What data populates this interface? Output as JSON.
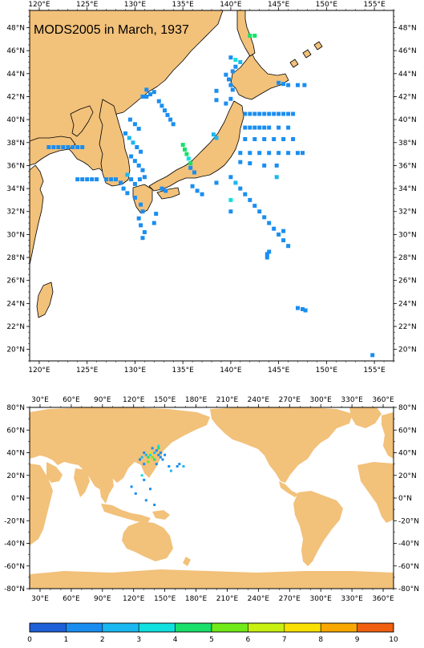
{
  "title": "MODS2005 in March, 1937",
  "colors": {
    "land": "#f2c17a",
    "land_stroke": "#000000",
    "ocean": "#ffffff",
    "frame": "#000000"
  },
  "regional_map": {
    "lon_range": [
      119,
      157
    ],
    "lat_range": [
      19,
      49.5
    ],
    "lon_ticks": [
      120,
      125,
      130,
      135,
      140,
      145,
      150,
      155
    ],
    "lon_labels": [
      "120°E",
      "125°E",
      "130°E",
      "135°E",
      "140°E",
      "145°E",
      "150°E",
      "155°E"
    ],
    "lat_ticks": [
      20,
      22,
      24,
      26,
      28,
      30,
      32,
      34,
      36,
      38,
      40,
      42,
      44,
      46,
      48
    ],
    "lat_labels": [
      "20°N",
      "22°N",
      "24°N",
      "26°N",
      "28°N",
      "30°N",
      "32°N",
      "34°N",
      "36°N",
      "38°N",
      "40°N",
      "42°N",
      "44°N",
      "46°N",
      "48°N"
    ]
  },
  "global_map": {
    "lon_range": [
      20,
      370
    ],
    "lat_range": [
      -80,
      80
    ],
    "lon_ticks": [
      30,
      60,
      90,
      120,
      150,
      180,
      210,
      240,
      270,
      300,
      330,
      360
    ],
    "lon_labels": [
      "30°E",
      "60°E",
      "90°E",
      "120°E",
      "150°E",
      "180°E",
      "210°E",
      "240°E",
      "270°E",
      "300°E",
      "330°E",
      "360°E"
    ],
    "lat_ticks": [
      -80,
      -60,
      -40,
      -20,
      0,
      20,
      40,
      60,
      80
    ],
    "lat_labels": [
      "-80°N",
      "-60°N",
      "-40°N",
      "-20°N",
      "0°N",
      "20°N",
      "40°N",
      "60°N",
      "80°N"
    ]
  },
  "colorbar": {
    "ticks": [
      "0",
      "1",
      "2",
      "3",
      "4",
      "5",
      "6",
      "7",
      "8",
      "9",
      "10"
    ],
    "colors": [
      "#1e60d8",
      "#1a8ef0",
      "#1ab8f0",
      "#10e0e0",
      "#18e06a",
      "#70ea18",
      "#c8f010",
      "#fae000",
      "#f8a800",
      "#f06010"
    ]
  },
  "chart_data": {
    "type": "heatmap",
    "description_units": "count of observations per 0.5-degree cell",
    "points": [
      {
        "lon": 142.0,
        "lat": 47.3,
        "v": 4
      },
      {
        "lon": 142.5,
        "lat": 47.3,
        "v": 4
      },
      {
        "lon": 140.0,
        "lat": 45.4,
        "v": 1
      },
      {
        "lon": 140.5,
        "lat": 45.2,
        "v": 3
      },
      {
        "lon": 141.0,
        "lat": 45.0,
        "v": 2
      },
      {
        "lon": 140.5,
        "lat": 44.6,
        "v": 1
      },
      {
        "lon": 140.2,
        "lat": 44.2,
        "v": 1
      },
      {
        "lon": 139.5,
        "lat": 43.9,
        "v": 1
      },
      {
        "lon": 139.8,
        "lat": 43.5,
        "v": 1
      },
      {
        "lon": 140.0,
        "lat": 43.0,
        "v": 1
      },
      {
        "lon": 140.2,
        "lat": 42.6,
        "v": 1
      },
      {
        "lon": 138.5,
        "lat": 42.5,
        "v": 1
      },
      {
        "lon": 138.5,
        "lat": 41.7,
        "v": 1
      },
      {
        "lon": 145.0,
        "lat": 43.2,
        "v": 1
      },
      {
        "lon": 145.5,
        "lat": 43.1,
        "v": 1
      },
      {
        "lon": 146.0,
        "lat": 43.0,
        "v": 1
      },
      {
        "lon": 147.0,
        "lat": 43.0,
        "v": 1
      },
      {
        "lon": 147.7,
        "lat": 43.0,
        "v": 1
      },
      {
        "lon": 141.5,
        "lat": 40.5,
        "v": 1
      },
      {
        "lon": 142.0,
        "lat": 40.5,
        "v": 1
      },
      {
        "lon": 142.5,
        "lat": 40.5,
        "v": 1
      },
      {
        "lon": 143.0,
        "lat": 40.5,
        "v": 1
      },
      {
        "lon": 143.5,
        "lat": 40.5,
        "v": 1
      },
      {
        "lon": 144.0,
        "lat": 40.5,
        "v": 1
      },
      {
        "lon": 144.5,
        "lat": 40.5,
        "v": 1
      },
      {
        "lon": 145.0,
        "lat": 40.5,
        "v": 1
      },
      {
        "lon": 145.5,
        "lat": 40.5,
        "v": 1
      },
      {
        "lon": 146.0,
        "lat": 40.5,
        "v": 1
      },
      {
        "lon": 146.5,
        "lat": 40.5,
        "v": 1
      },
      {
        "lon": 141.5,
        "lat": 39.3,
        "v": 1
      },
      {
        "lon": 142.0,
        "lat": 39.3,
        "v": 1
      },
      {
        "lon": 142.5,
        "lat": 39.3,
        "v": 1
      },
      {
        "lon": 143.0,
        "lat": 39.3,
        "v": 1
      },
      {
        "lon": 143.5,
        "lat": 39.3,
        "v": 1
      },
      {
        "lon": 144.0,
        "lat": 39.3,
        "v": 1
      },
      {
        "lon": 145.0,
        "lat": 39.3,
        "v": 1
      },
      {
        "lon": 146.0,
        "lat": 39.3,
        "v": 1
      },
      {
        "lon": 141.5,
        "lat": 38.3,
        "v": 1
      },
      {
        "lon": 142.5,
        "lat": 38.3,
        "v": 1
      },
      {
        "lon": 143.5,
        "lat": 38.3,
        "v": 1
      },
      {
        "lon": 144.5,
        "lat": 38.3,
        "v": 1
      },
      {
        "lon": 145.5,
        "lat": 38.3,
        "v": 1
      },
      {
        "lon": 146.5,
        "lat": 38.3,
        "v": 1
      },
      {
        "lon": 141.0,
        "lat": 37.1,
        "v": 1
      },
      {
        "lon": 142.0,
        "lat": 37.1,
        "v": 1
      },
      {
        "lon": 143.0,
        "lat": 37.1,
        "v": 1
      },
      {
        "lon": 144.0,
        "lat": 37.1,
        "v": 1
      },
      {
        "lon": 145.0,
        "lat": 37.1,
        "v": 1
      },
      {
        "lon": 146.0,
        "lat": 37.1,
        "v": 1
      },
      {
        "lon": 147.0,
        "lat": 37.1,
        "v": 1
      },
      {
        "lon": 147.5,
        "lat": 37.1,
        "v": 1
      },
      {
        "lon": 141.0,
        "lat": 36.3,
        "v": 1
      },
      {
        "lon": 142.0,
        "lat": 36.2,
        "v": 1
      },
      {
        "lon": 143.5,
        "lat": 36.0,
        "v": 1
      },
      {
        "lon": 144.8,
        "lat": 36.0,
        "v": 1
      },
      {
        "lon": 144.8,
        "lat": 35.0,
        "v": 2
      },
      {
        "lon": 140.0,
        "lat": 35.0,
        "v": 1
      },
      {
        "lon": 140.5,
        "lat": 34.5,
        "v": 2
      },
      {
        "lon": 141.0,
        "lat": 34.0,
        "v": 1
      },
      {
        "lon": 141.5,
        "lat": 33.5,
        "v": 1
      },
      {
        "lon": 142.0,
        "lat": 33.0,
        "v": 1
      },
      {
        "lon": 142.5,
        "lat": 32.5,
        "v": 1
      },
      {
        "lon": 143.0,
        "lat": 32.0,
        "v": 1
      },
      {
        "lon": 143.5,
        "lat": 31.5,
        "v": 1
      },
      {
        "lon": 144.0,
        "lat": 31.0,
        "v": 1
      },
      {
        "lon": 144.5,
        "lat": 30.5,
        "v": 1
      },
      {
        "lon": 145.0,
        "lat": 30.0,
        "v": 1
      },
      {
        "lon": 145.5,
        "lat": 29.5,
        "v": 1
      },
      {
        "lon": 146.0,
        "lat": 29.0,
        "v": 1
      },
      {
        "lon": 145.5,
        "lat": 30.3,
        "v": 1
      },
      {
        "lon": 140.0,
        "lat": 33.0,
        "v": 3
      },
      {
        "lon": 140.0,
        "lat": 32.0,
        "v": 1
      },
      {
        "lon": 143.8,
        "lat": 28.0,
        "v": 1
      },
      {
        "lon": 143.8,
        "lat": 28.3,
        "v": 1
      },
      {
        "lon": 144.0,
        "lat": 28.5,
        "v": 1
      },
      {
        "lon": 147.0,
        "lat": 23.6,
        "v": 1
      },
      {
        "lon": 147.5,
        "lat": 23.5,
        "v": 1
      },
      {
        "lon": 147.8,
        "lat": 23.4,
        "v": 1
      },
      {
        "lon": 154.8,
        "lat": 19.5,
        "v": 1
      },
      {
        "lon": 135.0,
        "lat": 37.8,
        "v": 4
      },
      {
        "lon": 135.2,
        "lat": 37.4,
        "v": 4
      },
      {
        "lon": 135.4,
        "lat": 37.0,
        "v": 4
      },
      {
        "lon": 135.6,
        "lat": 36.6,
        "v": 3
      },
      {
        "lon": 135.8,
        "lat": 36.2,
        "v": 4
      },
      {
        "lon": 138.2,
        "lat": 38.7,
        "v": 2
      },
      {
        "lon": 138.5,
        "lat": 38.4,
        "v": 2
      },
      {
        "lon": 135.8,
        "lat": 35.8,
        "v": 1
      },
      {
        "lon": 136.2,
        "lat": 35.4,
        "v": 1
      },
      {
        "lon": 132.5,
        "lat": 41.6,
        "v": 1
      },
      {
        "lon": 132.8,
        "lat": 41.2,
        "v": 1
      },
      {
        "lon": 133.1,
        "lat": 40.8,
        "v": 1
      },
      {
        "lon": 133.4,
        "lat": 40.4,
        "v": 1
      },
      {
        "lon": 133.7,
        "lat": 40.0,
        "v": 1
      },
      {
        "lon": 134.0,
        "lat": 39.6,
        "v": 1
      },
      {
        "lon": 130.8,
        "lat": 42.0,
        "v": 1
      },
      {
        "lon": 131.2,
        "lat": 42.0,
        "v": 1
      },
      {
        "lon": 131.6,
        "lat": 42.2,
        "v": 1
      },
      {
        "lon": 132.0,
        "lat": 42.4,
        "v": 1
      },
      {
        "lon": 131.2,
        "lat": 42.6,
        "v": 1
      },
      {
        "lon": 129.5,
        "lat": 40.0,
        "v": 1
      },
      {
        "lon": 130.0,
        "lat": 39.6,
        "v": 1
      },
      {
        "lon": 130.4,
        "lat": 39.2,
        "v": 1
      },
      {
        "lon": 129.0,
        "lat": 38.8,
        "v": 1
      },
      {
        "lon": 129.4,
        "lat": 38.4,
        "v": 2
      },
      {
        "lon": 129.8,
        "lat": 38.0,
        "v": 2
      },
      {
        "lon": 130.2,
        "lat": 37.6,
        "v": 1
      },
      {
        "lon": 130.6,
        "lat": 37.2,
        "v": 1
      },
      {
        "lon": 129.6,
        "lat": 36.8,
        "v": 1
      },
      {
        "lon": 130.0,
        "lat": 36.4,
        "v": 1
      },
      {
        "lon": 130.4,
        "lat": 36.0,
        "v": 1
      },
      {
        "lon": 130.8,
        "lat": 35.6,
        "v": 1
      },
      {
        "lon": 129.2,
        "lat": 35.2,
        "v": 2
      },
      {
        "lon": 129.6,
        "lat": 34.8,
        "v": 1
      },
      {
        "lon": 130.0,
        "lat": 34.4,
        "v": 1
      },
      {
        "lon": 130.5,
        "lat": 34.8,
        "v": 1
      },
      {
        "lon": 131.0,
        "lat": 35.0,
        "v": 1
      },
      {
        "lon": 128.5,
        "lat": 34.5,
        "v": 1
      },
      {
        "lon": 128.8,
        "lat": 34.0,
        "v": 1
      },
      {
        "lon": 129.2,
        "lat": 33.6,
        "v": 1
      },
      {
        "lon": 130.0,
        "lat": 33.2,
        "v": 1
      },
      {
        "lon": 130.6,
        "lat": 32.6,
        "v": 1
      },
      {
        "lon": 130.8,
        "lat": 32.0,
        "v": 1
      },
      {
        "lon": 130.4,
        "lat": 31.4,
        "v": 1
      },
      {
        "lon": 130.6,
        "lat": 30.8,
        "v": 1
      },
      {
        "lon": 131.0,
        "lat": 30.2,
        "v": 1
      },
      {
        "lon": 130.8,
        "lat": 29.7,
        "v": 1
      },
      {
        "lon": 121.0,
        "lat": 37.6,
        "v": 1
      },
      {
        "lon": 121.5,
        "lat": 37.6,
        "v": 1
      },
      {
        "lon": 122.0,
        "lat": 37.6,
        "v": 1
      },
      {
        "lon": 122.5,
        "lat": 37.6,
        "v": 1
      },
      {
        "lon": 123.0,
        "lat": 37.6,
        "v": 1
      },
      {
        "lon": 123.5,
        "lat": 37.6,
        "v": 1
      },
      {
        "lon": 124.0,
        "lat": 37.6,
        "v": 1
      },
      {
        "lon": 124.5,
        "lat": 37.6,
        "v": 1
      },
      {
        "lon": 124.0,
        "lat": 34.8,
        "v": 1
      },
      {
        "lon": 124.5,
        "lat": 34.8,
        "v": 1
      },
      {
        "lon": 125.0,
        "lat": 34.8,
        "v": 1
      },
      {
        "lon": 125.5,
        "lat": 34.8,
        "v": 1
      },
      {
        "lon": 126.0,
        "lat": 34.8,
        "v": 1
      },
      {
        "lon": 127.0,
        "lat": 34.8,
        "v": 1
      },
      {
        "lon": 127.5,
        "lat": 34.8,
        "v": 1
      },
      {
        "lon": 128.0,
        "lat": 34.8,
        "v": 1
      },
      {
        "lon": 132.8,
        "lat": 34.0,
        "v": 1
      },
      {
        "lon": 133.2,
        "lat": 33.8,
        "v": 1
      },
      {
        "lon": 132.0,
        "lat": 31.0,
        "v": 1
      },
      {
        "lon": 132.2,
        "lat": 31.8,
        "v": 1
      },
      {
        "lon": 136.0,
        "lat": 34.2,
        "v": 1
      },
      {
        "lon": 136.5,
        "lat": 33.8,
        "v": 1
      },
      {
        "lon": 137.0,
        "lat": 33.5,
        "v": 1
      },
      {
        "lon": 138.5,
        "lat": 34.5,
        "v": 1
      },
      {
        "lon": 140.0,
        "lat": 41.8,
        "v": 1
      },
      {
        "lon": 139.5,
        "lat": 41.4,
        "v": 1
      }
    ],
    "global_points": [
      {
        "lon": 130,
        "lat": 40,
        "v": 1
      },
      {
        "lon": 132,
        "lat": 38,
        "v": 2
      },
      {
        "lon": 134,
        "lat": 36,
        "v": 4
      },
      {
        "lon": 136,
        "lat": 38,
        "v": 3
      },
      {
        "lon": 138,
        "lat": 36,
        "v": 5
      },
      {
        "lon": 140,
        "lat": 40,
        "v": 2
      },
      {
        "lon": 142,
        "lat": 42,
        "v": 1
      },
      {
        "lon": 144,
        "lat": 38,
        "v": 1
      },
      {
        "lon": 146,
        "lat": 36,
        "v": 1
      },
      {
        "lon": 140,
        "lat": 34,
        "v": 4
      },
      {
        "lon": 138,
        "lat": 44,
        "v": 1
      },
      {
        "lon": 144,
        "lat": 46,
        "v": 3
      },
      {
        "lon": 142,
        "lat": 30,
        "v": 1
      },
      {
        "lon": 148,
        "lat": 34,
        "v": 1
      },
      {
        "lon": 150,
        "lat": 38,
        "v": 1
      },
      {
        "lon": 154,
        "lat": 28,
        "v": 1
      },
      {
        "lon": 156,
        "lat": 24,
        "v": 2
      },
      {
        "lon": 162,
        "lat": 28,
        "v": 1
      },
      {
        "lon": 168,
        "lat": 28,
        "v": 2
      },
      {
        "lon": 164,
        "lat": 30,
        "v": 1
      },
      {
        "lon": 118,
        "lat": 10,
        "v": 1
      },
      {
        "lon": 122,
        "lat": 4,
        "v": 1
      },
      {
        "lon": 130,
        "lat": 16,
        "v": 1
      },
      {
        "lon": 136,
        "lat": 8,
        "v": 1
      },
      {
        "lon": 132,
        "lat": -2,
        "v": 1
      },
      {
        "lon": 140,
        "lat": -6,
        "v": 1
      },
      {
        "lon": 128,
        "lat": 20,
        "v": 3
      },
      {
        "lon": 126,
        "lat": 34,
        "v": 1
      },
      {
        "lon": 128,
        "lat": 36,
        "v": 2
      },
      {
        "lon": 144,
        "lat": 44,
        "v": 4
      },
      {
        "lon": 146,
        "lat": 40,
        "v": 1
      },
      {
        "lon": 130,
        "lat": 30,
        "v": 1
      },
      {
        "lon": 134,
        "lat": 32,
        "v": 5
      },
      {
        "lon": 136,
        "lat": 40,
        "v": 6
      }
    ]
  }
}
